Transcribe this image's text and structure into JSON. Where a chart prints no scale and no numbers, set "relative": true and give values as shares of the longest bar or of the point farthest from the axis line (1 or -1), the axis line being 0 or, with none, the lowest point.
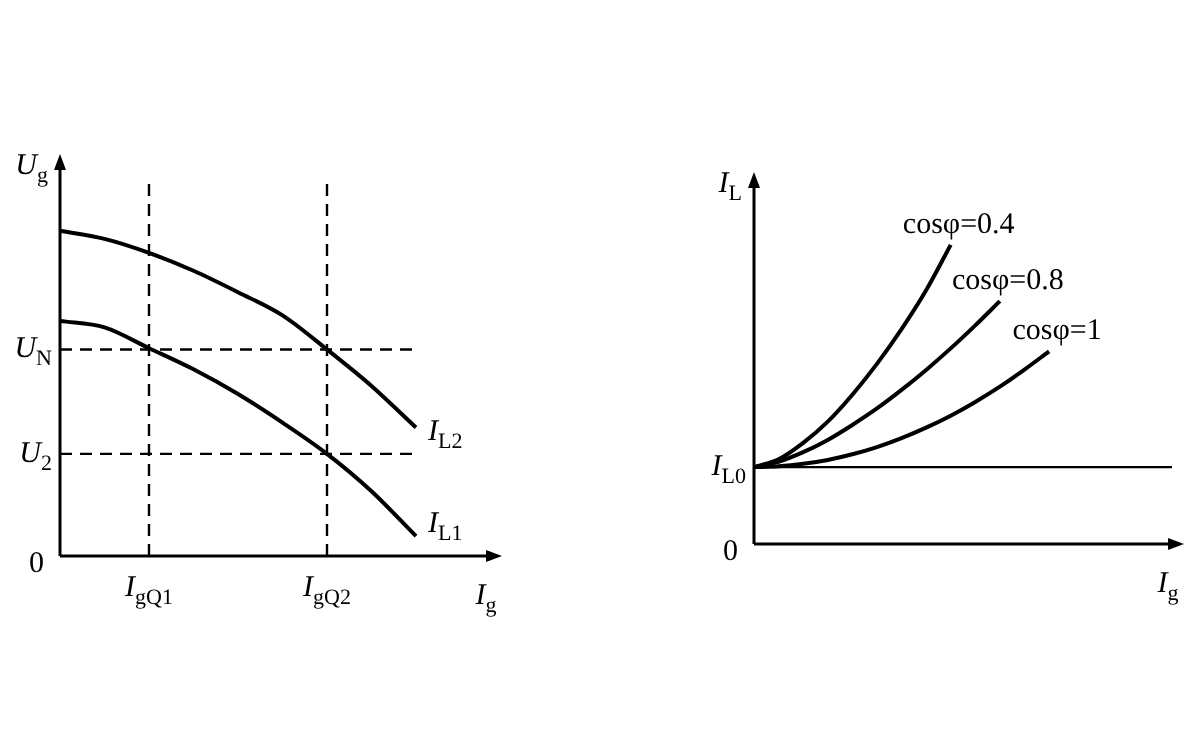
{
  "chart_data": [
    {
      "type": "line",
      "relative": true,
      "xlabel": "I$_{g}$",
      "ylabel": "U$_{g}$",
      "categories": [
        null,
        null,
        "I$_{gQ1}$",
        null,
        null,
        null,
        "I$_{gQ2}$",
        null,
        null
      ],
      "series": [
        {
          "name": "I$_{L2}$",
          "color": "#000000",
          "values": [
            1,
            0.975,
            0.932,
            0.877,
            0.811,
            0.74,
            0.635,
            0.523,
            0.395
          ]
        },
        {
          "name": "I$_{L1}$",
          "color": "#000000",
          "values": [
            0.723,
            0.703,
            0.639,
            0.574,
            0.498,
            0.41,
            0.314,
            0.199,
            0.061
          ]
        }
      ],
      "ref_lines": [
        {
          "axis": "y",
          "value": 0.635,
          "label": "U$_{N}$",
          "line_style": "dashed",
          "color": "#000000"
        },
        {
          "axis": "y",
          "value": 0.314,
          "label": "U$_{2}$",
          "line_style": "dashed",
          "color": "#000000"
        },
        {
          "axis": "x",
          "value": "I$_{gQ1}$",
          "line_style": "dashed",
          "color": "#000000"
        },
        {
          "axis": "x",
          "value": "I$_{gQ2}$",
          "line_style": "dashed",
          "color": "#000000"
        }
      ],
      "annotations": [
        "0"
      ],
      "legend": false,
      "marker": "none",
      "line_style": "solid"
    },
    {
      "type": "line",
      "relative": true,
      "xlabel": "I$_{g}$",
      "ylabel": "I$_{L}$",
      "categories": [
        null,
        null,
        null,
        null,
        null,
        null,
        null,
        null,
        null,
        null,
        null,
        null,
        null,
        null,
        null,
        null,
        null,
        null
      ],
      "series": [
        {
          "name": "cosφ=0.4",
          "color": "#000000",
          "values": [
            0.257,
            0.283,
            0.338,
            0.409,
            0.499,
            0.602,
            0.718,
            0.848,
            1,
            null,
            null,
            null,
            null,
            null,
            null,
            null,
            null,
            null
          ]
        },
        {
          "name": "cosφ=0.8",
          "color": "#000000",
          "values": [
            0.257,
            0.275,
            0.307,
            0.348,
            0.398,
            0.453,
            0.515,
            0.582,
            0.654,
            0.731,
            0.812,
            null,
            null,
            null,
            null,
            null,
            null,
            null
          ]
        },
        {
          "name": "cosφ=1",
          "color": "#000000",
          "values": [
            0.257,
            0.26,
            0.268,
            0.281,
            0.3,
            0.324,
            0.354,
            0.389,
            0.429,
            0.475,
            0.526,
            0.583,
            0.644,
            null,
            null,
            null,
            null,
            null
          ]
        }
      ],
      "ref_lines": [
        {
          "axis": "y",
          "value": 0.257,
          "label": "I$_{L0}$",
          "line_style": "solid",
          "color": "#000000"
        }
      ],
      "annotations": [
        "0"
      ],
      "legend": false,
      "marker": "none",
      "line_style": "solid"
    }
  ]
}
